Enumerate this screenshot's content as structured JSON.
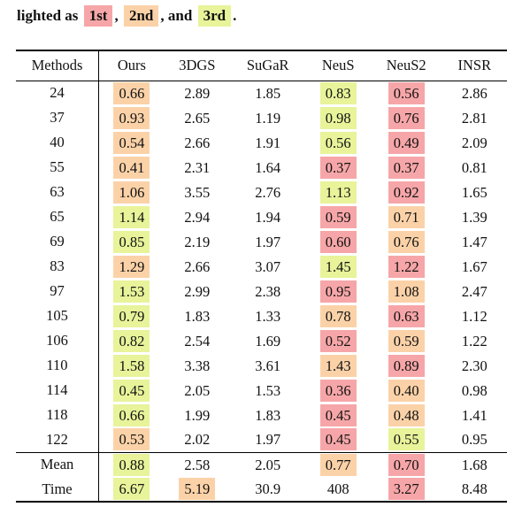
{
  "caption": {
    "prefix": "lighted as",
    "first": "1st",
    "sep1": ",",
    "second": "2nd",
    "sep2": ", and",
    "third": "3rd",
    "suffix": "."
  },
  "colors": {
    "rank1": "#f6a6a8",
    "rank2": "#fbd2a8",
    "rank3": "#e8f39a"
  },
  "table": {
    "headers": [
      "Methods",
      "Ours",
      "3DGS",
      "SuGaR",
      "NeuS",
      "NeuS2",
      "INSR"
    ],
    "rows": [
      {
        "label": "24",
        "values": [
          "0.66",
          "2.89",
          "1.85",
          "0.83",
          "0.56",
          "2.86"
        ],
        "ranks": [
          2,
          0,
          0,
          3,
          1,
          0
        ]
      },
      {
        "label": "37",
        "values": [
          "0.93",
          "2.65",
          "1.19",
          "0.98",
          "0.76",
          "2.81"
        ],
        "ranks": [
          2,
          0,
          0,
          3,
          1,
          0
        ]
      },
      {
        "label": "40",
        "values": [
          "0.54",
          "2.66",
          "1.91",
          "0.56",
          "0.49",
          "2.09"
        ],
        "ranks": [
          2,
          0,
          0,
          3,
          1,
          0
        ]
      },
      {
        "label": "55",
        "values": [
          "0.41",
          "2.31",
          "1.64",
          "0.37",
          "0.37",
          "0.81"
        ],
        "ranks": [
          2,
          0,
          0,
          1,
          1,
          0
        ]
      },
      {
        "label": "63",
        "values": [
          "1.06",
          "3.55",
          "2.76",
          "1.13",
          "0.92",
          "1.65"
        ],
        "ranks": [
          2,
          0,
          0,
          3,
          1,
          0
        ]
      },
      {
        "label": "65",
        "values": [
          "1.14",
          "2.94",
          "1.94",
          "0.59",
          "0.71",
          "1.39"
        ],
        "ranks": [
          3,
          0,
          0,
          1,
          2,
          0
        ]
      },
      {
        "label": "69",
        "values": [
          "0.85",
          "2.19",
          "1.97",
          "0.60",
          "0.76",
          "1.47"
        ],
        "ranks": [
          3,
          0,
          0,
          1,
          2,
          0
        ]
      },
      {
        "label": "83",
        "values": [
          "1.29",
          "2.66",
          "3.07",
          "1.45",
          "1.22",
          "1.67"
        ],
        "ranks": [
          2,
          0,
          0,
          3,
          1,
          0
        ]
      },
      {
        "label": "97",
        "values": [
          "1.53",
          "2.99",
          "2.38",
          "0.95",
          "1.08",
          "2.47"
        ],
        "ranks": [
          3,
          0,
          0,
          1,
          2,
          0
        ]
      },
      {
        "label": "105",
        "values": [
          "0.79",
          "1.83",
          "1.33",
          "0.78",
          "0.63",
          "1.12"
        ],
        "ranks": [
          3,
          0,
          0,
          2,
          1,
          0
        ]
      },
      {
        "label": "106",
        "values": [
          "0.82",
          "2.54",
          "1.69",
          "0.52",
          "0.59",
          "1.22"
        ],
        "ranks": [
          3,
          0,
          0,
          1,
          2,
          0
        ]
      },
      {
        "label": "110",
        "values": [
          "1.58",
          "3.38",
          "3.61",
          "1.43",
          "0.89",
          "2.30"
        ],
        "ranks": [
          3,
          0,
          0,
          2,
          1,
          0
        ]
      },
      {
        "label": "114",
        "values": [
          "0.45",
          "2.05",
          "1.53",
          "0.36",
          "0.40",
          "0.98"
        ],
        "ranks": [
          3,
          0,
          0,
          1,
          2,
          0
        ]
      },
      {
        "label": "118",
        "values": [
          "0.66",
          "1.99",
          "1.83",
          "0.45",
          "0.48",
          "1.41"
        ],
        "ranks": [
          3,
          0,
          0,
          1,
          2,
          0
        ]
      },
      {
        "label": "122",
        "values": [
          "0.53",
          "2.02",
          "1.97",
          "0.45",
          "0.55",
          "0.95"
        ],
        "ranks": [
          2,
          0,
          0,
          1,
          3,
          0
        ]
      }
    ],
    "footer": [
      {
        "label": "Mean",
        "values": [
          "0.88",
          "2.58",
          "2.05",
          "0.77",
          "0.70",
          "1.68"
        ],
        "ranks": [
          3,
          0,
          0,
          2,
          1,
          0
        ]
      },
      {
        "label": "Time",
        "values": [
          "6.67",
          "5.19",
          "30.9",
          "408",
          "3.27",
          "8.48"
        ],
        "ranks": [
          3,
          2,
          0,
          0,
          1,
          0
        ]
      }
    ]
  }
}
